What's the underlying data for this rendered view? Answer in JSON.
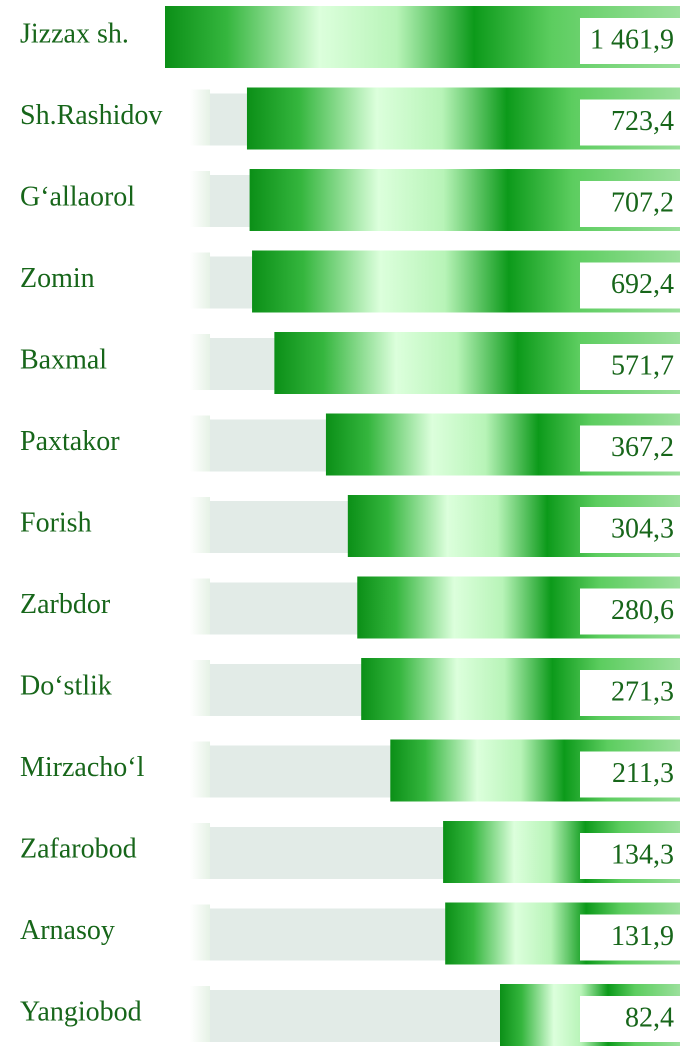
{
  "chart_data": {
    "type": "bar",
    "orientation": "horizontal",
    "categories": [
      "Jizzax sh.",
      "Sh.Rashidov",
      "G‘allaorol",
      "Zomin",
      "Baxmal",
      "Paxtakor",
      "Forish",
      "Zarbdor",
      "Do‘stlik",
      "Mirzacho‘l",
      "Zafarobod",
      "Arnasoy",
      "Yangiobod"
    ],
    "values": [
      1461.9,
      723.4,
      707.2,
      692.4,
      571.7,
      367.2,
      304.3,
      280.6,
      271.3,
      211.3,
      134.3,
      131.9,
      82.4
    ],
    "value_labels": [
      "1 461,9",
      "723,4",
      "707,2",
      "692,4",
      "571,7",
      "367,2",
      "304,3",
      "280,6",
      "271,3",
      "211,3",
      "134,3",
      "131,9",
      "82,4"
    ],
    "color": "#0e9a1c"
  }
}
